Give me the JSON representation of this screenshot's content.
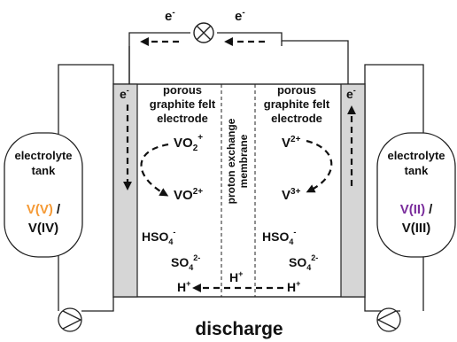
{
  "colors": {
    "orange": "#f59a36",
    "blue": "#1f7fc2",
    "purple": "#7a2d9c",
    "green": "#1e9a3c",
    "electrode_gray": "#d6d6d6"
  },
  "top": {
    "electron_left": "e",
    "electron_right": "e",
    "electron_sup": "-",
    "load_icon": "circled-x-lamp-icon"
  },
  "left_cell": {
    "electron": "e",
    "electron_sup": "-",
    "electrode_lines": [
      "porous",
      "graphite felt",
      "electrode"
    ],
    "vo2plus": {
      "base": "VO",
      "sub": "2",
      "sup": "+"
    },
    "vo2plus2": {
      "base": "VO",
      "sup": "2+"
    },
    "hso4": {
      "base": "HSO",
      "sub": "4",
      "sup": "-"
    },
    "so4": {
      "base": "SO",
      "sub": "4",
      "sup": "2-"
    },
    "hplus": {
      "base": "H",
      "sup": "+"
    }
  },
  "membrane": {
    "lines": [
      "proton exchange",
      "membrane"
    ],
    "hplus": {
      "base": "H",
      "sup": "+"
    }
  },
  "right_cell": {
    "electron": "e",
    "electron_sup": "-",
    "electrode_lines": [
      "porous",
      "graphite felt",
      "electrode"
    ],
    "v2plus": {
      "base": "V",
      "sup": "2+"
    },
    "v3plus": {
      "base": "V",
      "sup": "3+"
    },
    "hso4": {
      "base": "HSO",
      "sub": "4",
      "sup": "-"
    },
    "so4": {
      "base": "SO",
      "sub": "4",
      "sup": "2-"
    },
    "hplus": {
      "base": "H",
      "sup": "+"
    }
  },
  "left_tank": {
    "title_lines": [
      "electrolyte",
      "tank"
    ],
    "species1": "V(V)",
    "separator": "/",
    "species2": "V(IV)"
  },
  "right_tank": {
    "title_lines": [
      "electrolyte",
      "tank"
    ],
    "species1": "V(II)",
    "separator": "/",
    "species2": "V(III)"
  },
  "pumps": {
    "left_icon": "pump-icon",
    "right_icon": "pump-icon"
  },
  "caption": "discharge"
}
